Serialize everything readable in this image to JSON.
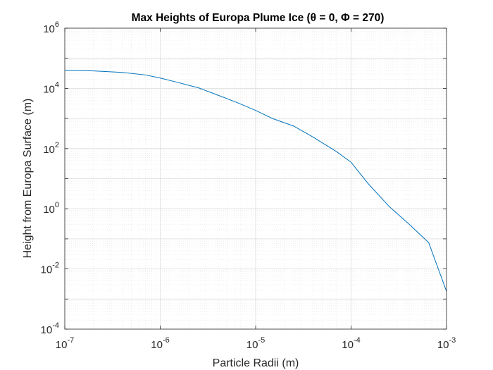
{
  "chart_data": {
    "type": "line",
    "title": "Max Heights of Europa Plume Ice (θ = 0, Φ = 270)",
    "xlabel": "Particle Radii (m)",
    "ylabel": "Height from Europa Surface (m)",
    "x_scale": "log",
    "y_scale": "log",
    "xlim": [
      1e-07,
      0.001
    ],
    "ylim": [
      0.0001,
      1000000.0
    ],
    "grid": true,
    "minor_grid": true,
    "x_ticks": [
      {
        "base": "10",
        "exp": "-7",
        "value": 1e-07
      },
      {
        "base": "10",
        "exp": "-6",
        "value": 1e-06
      },
      {
        "base": "10",
        "exp": "-5",
        "value": 1e-05
      },
      {
        "base": "10",
        "exp": "-4",
        "value": 0.0001
      },
      {
        "base": "10",
        "exp": "-3",
        "value": 0.001
      }
    ],
    "y_ticks": [
      {
        "base": "10",
        "exp": "-4",
        "value": 0.0001
      },
      {
        "base": "10",
        "exp": "-2",
        "value": 0.01
      },
      {
        "base": "10",
        "exp": "0",
        "value": 1
      },
      {
        "base": "10",
        "exp": "2",
        "value": 100.0
      },
      {
        "base": "10",
        "exp": "4",
        "value": 10000.0
      },
      {
        "base": "10",
        "exp": "6",
        "value": 1000000.0
      }
    ],
    "series": [
      {
        "color": "#0072BD",
        "x": [
          1e-07,
          2e-07,
          4e-07,
          7e-07,
          1e-06,
          1.5e-06,
          2.5e-06,
          4e-06,
          6.5e-06,
          1e-05,
          1.5e-05,
          2.5e-05,
          4e-05,
          7e-05,
          0.0001,
          0.00015,
          0.00025,
          0.0004,
          0.00065,
          0.001
        ],
        "y": [
          40000,
          38000,
          34000,
          28000,
          22000,
          16000,
          10500,
          6000,
          3300,
          1850,
          1000,
          560,
          240,
          80,
          35,
          7,
          1.2,
          0.32,
          0.075,
          0.0018
        ]
      }
    ]
  }
}
